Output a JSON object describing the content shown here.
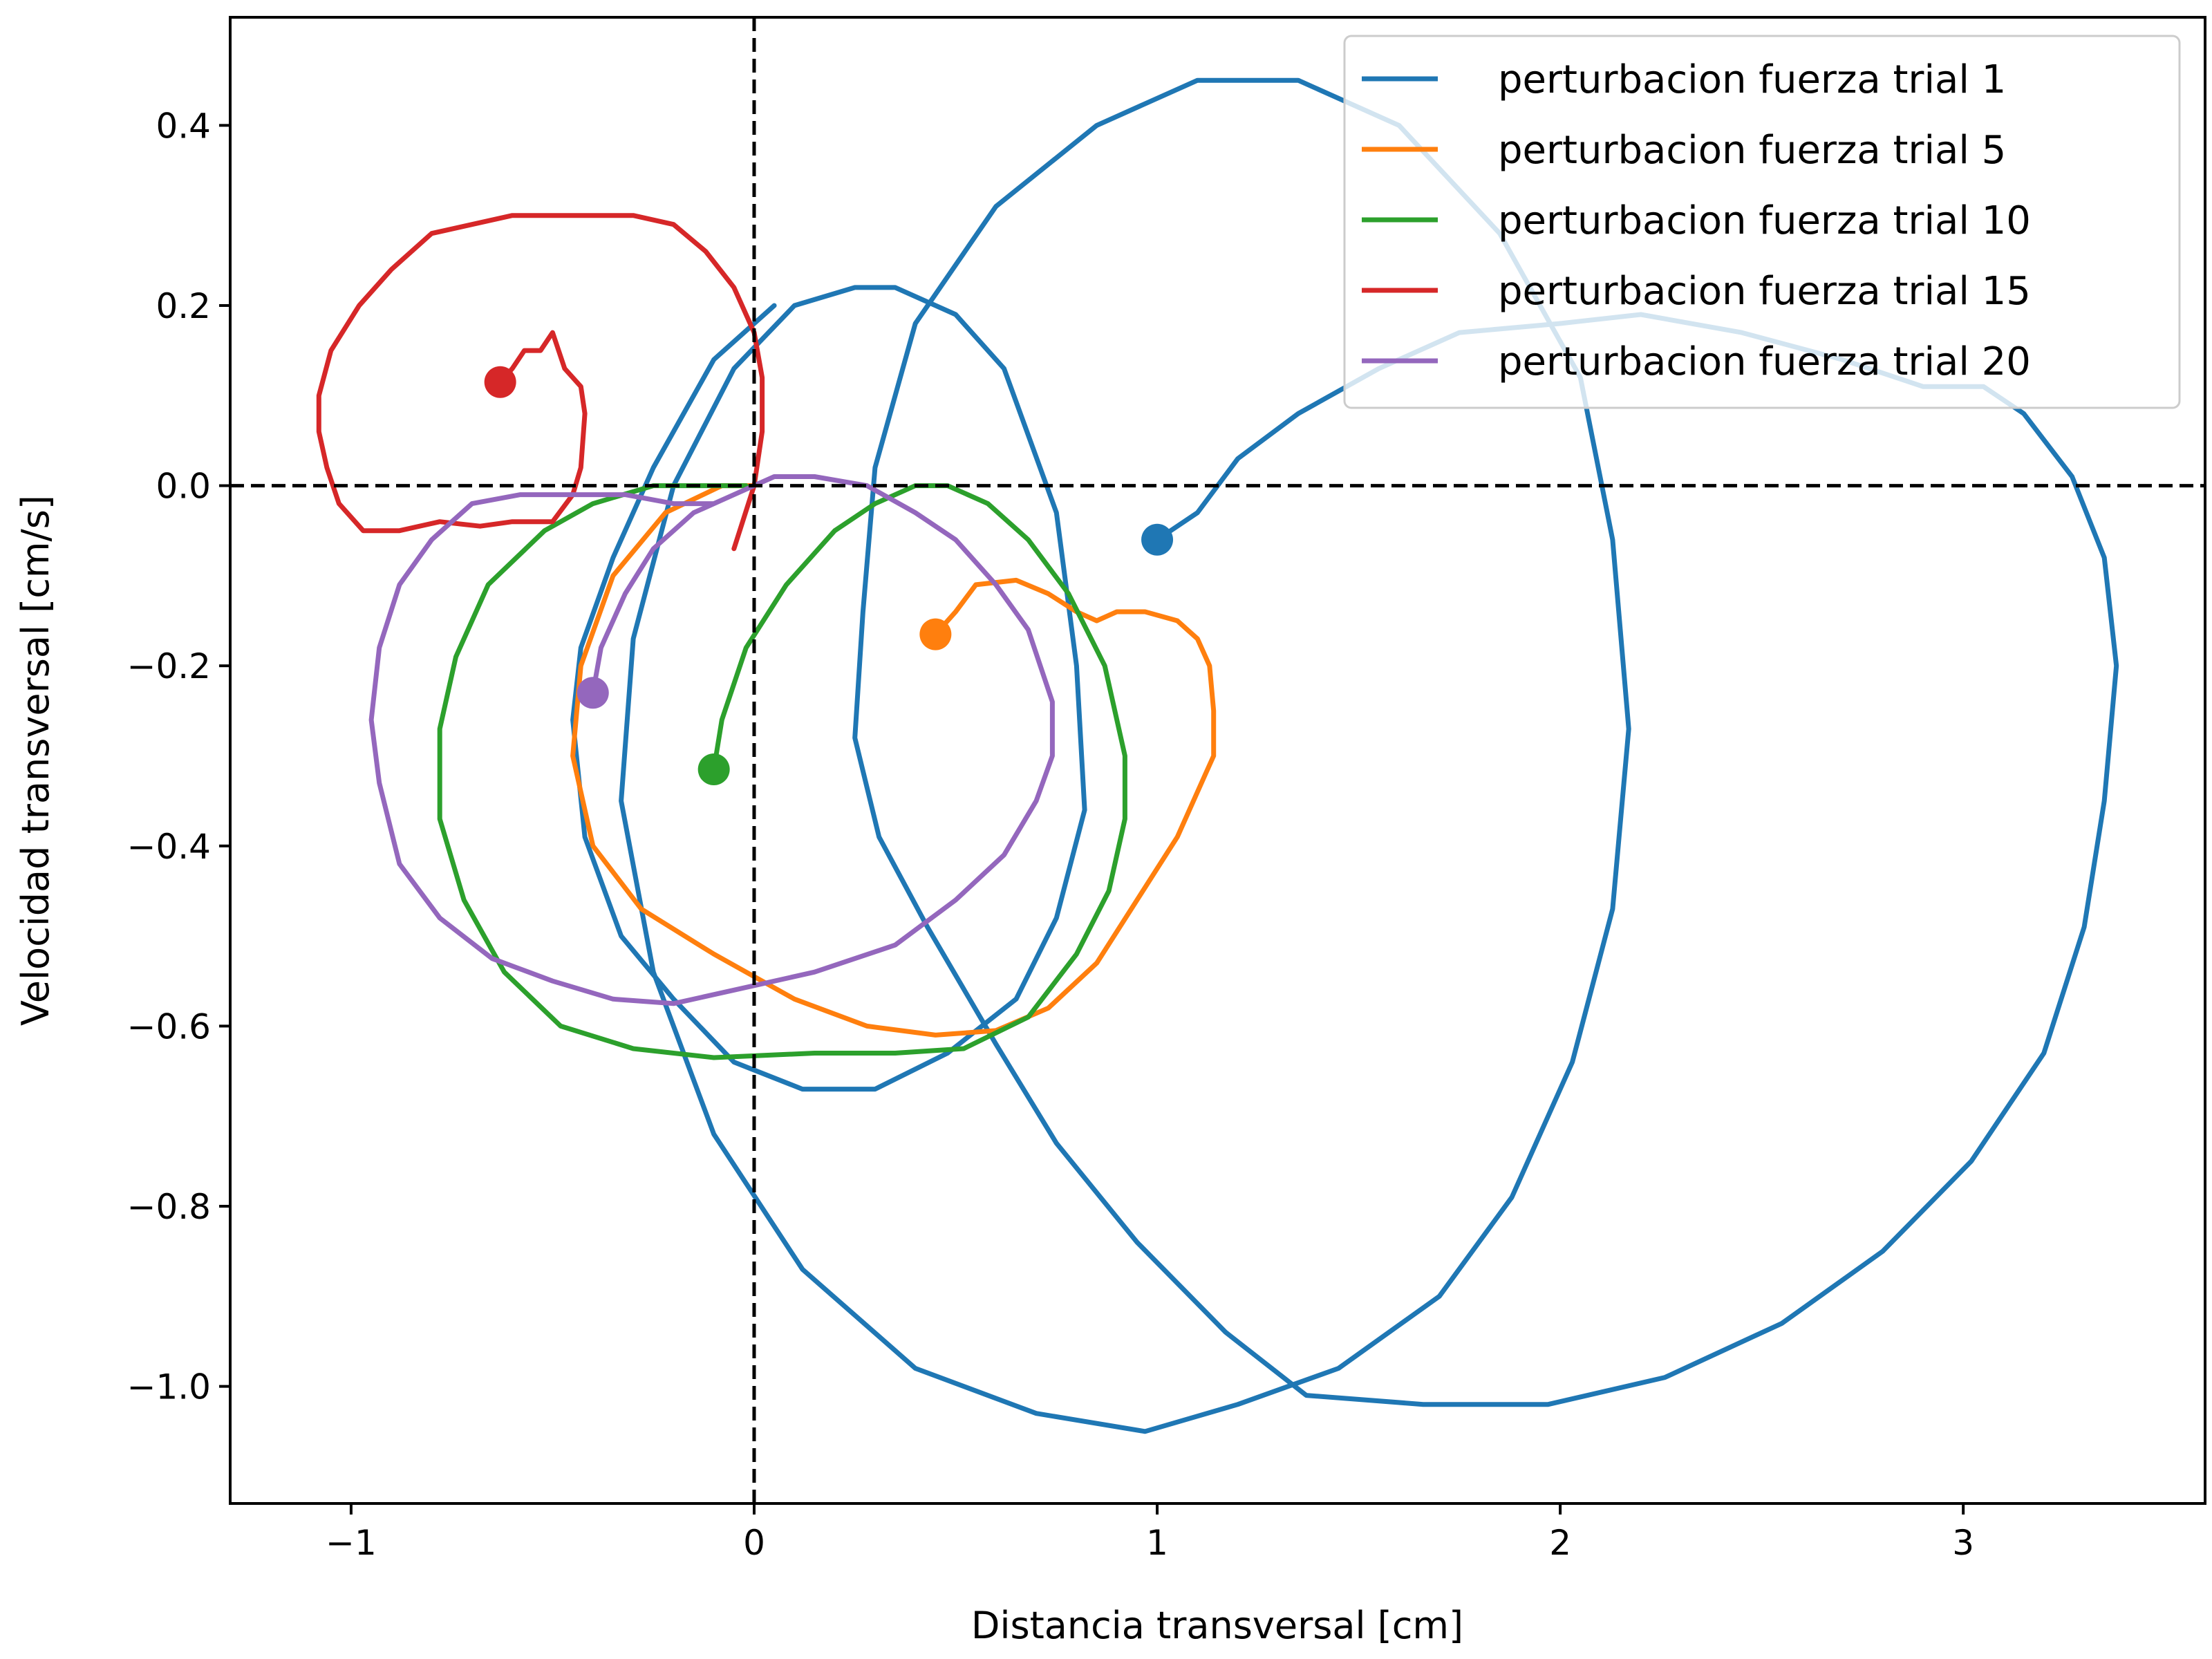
{
  "chart_data": {
    "type": "line",
    "xlabel": "Distancia transversal [cm]",
    "ylabel": "Velocidad transversal [cm/s]",
    "xlim": [
      -1.3,
      3.6
    ],
    "ylim": [
      -1.13,
      0.52
    ],
    "xticks": [
      {
        "value": -1,
        "label": "−1"
      },
      {
        "value": 0,
        "label": "0"
      },
      {
        "value": 1,
        "label": "1"
      },
      {
        "value": 2,
        "label": "2"
      },
      {
        "value": 3,
        "label": "3"
      }
    ],
    "yticks": [
      {
        "value": 0.4,
        "label": "0.4"
      },
      {
        "value": 0.2,
        "label": "0.2"
      },
      {
        "value": 0.0,
        "label": "0.0"
      },
      {
        "value": -0.2,
        "label": "−0.2"
      },
      {
        "value": -0.4,
        "label": "−0.4"
      },
      {
        "value": -0.6,
        "label": "−0.6"
      },
      {
        "value": -0.8,
        "label": "−0.8"
      },
      {
        "value": -1.0,
        "label": "−1.0"
      }
    ],
    "reference_lines": {
      "x": 0,
      "y": 0,
      "style": "dashed",
      "color": "#000000"
    },
    "grid": false,
    "legend_position": "top-right",
    "series": [
      {
        "name": "perturbacion fuerza trial 1",
        "color": "#1f77b4",
        "start_marker": [
          1.0,
          -0.06
        ],
        "points": [
          [
            1.0,
            -0.06
          ],
          [
            1.1,
            -0.03
          ],
          [
            1.2,
            0.03
          ],
          [
            1.35,
            0.08
          ],
          [
            1.55,
            0.13
          ],
          [
            1.75,
            0.17
          ],
          [
            2.0,
            0.18
          ],
          [
            2.2,
            0.19
          ],
          [
            2.45,
            0.17
          ],
          [
            2.7,
            0.14
          ],
          [
            2.9,
            0.11
          ],
          [
            3.05,
            0.11
          ],
          [
            3.15,
            0.08
          ],
          [
            3.27,
            0.01
          ],
          [
            3.35,
            -0.08
          ],
          [
            3.38,
            -0.2
          ],
          [
            3.35,
            -0.35
          ],
          [
            3.3,
            -0.49
          ],
          [
            3.2,
            -0.63
          ],
          [
            3.02,
            -0.75
          ],
          [
            2.8,
            -0.85
          ],
          [
            2.55,
            -0.93
          ],
          [
            2.26,
            -0.99
          ],
          [
            1.97,
            -1.02
          ],
          [
            1.66,
            -1.02
          ],
          [
            1.37,
            -1.01
          ],
          [
            1.17,
            -0.94
          ],
          [
            0.95,
            -0.84
          ],
          [
            0.75,
            -0.73
          ],
          [
            0.6,
            -0.62
          ],
          [
            0.43,
            -0.49
          ],
          [
            0.31,
            -0.39
          ],
          [
            0.25,
            -0.28
          ],
          [
            0.27,
            -0.14
          ],
          [
            0.3,
            0.02
          ],
          [
            0.4,
            0.18
          ],
          [
            0.6,
            0.31
          ],
          [
            0.85,
            0.4
          ],
          [
            1.1,
            0.45
          ],
          [
            1.35,
            0.45
          ],
          [
            1.6,
            0.4
          ],
          [
            1.85,
            0.28
          ],
          [
            2.05,
            0.12
          ],
          [
            2.13,
            -0.06
          ],
          [
            2.17,
            -0.27
          ],
          [
            2.13,
            -0.47
          ],
          [
            2.03,
            -0.64
          ],
          [
            1.88,
            -0.79
          ],
          [
            1.7,
            -0.9
          ],
          [
            1.45,
            -0.98
          ],
          [
            1.2,
            -1.02
          ],
          [
            0.97,
            -1.05
          ],
          [
            0.7,
            -1.03
          ],
          [
            0.4,
            -0.98
          ],
          [
            0.12,
            -0.87
          ],
          [
            -0.1,
            -0.72
          ],
          [
            -0.25,
            -0.54
          ],
          [
            -0.33,
            -0.35
          ],
          [
            -0.3,
            -0.17
          ],
          [
            -0.2,
            0.0
          ],
          [
            -0.05,
            0.13
          ],
          [
            0.1,
            0.2
          ],
          [
            0.25,
            0.22
          ],
          [
            0.35,
            0.22
          ],
          [
            0.5,
            0.19
          ],
          [
            0.62,
            0.13
          ],
          [
            0.75,
            -0.03
          ],
          [
            0.8,
            -0.2
          ],
          [
            0.82,
            -0.36
          ],
          [
            0.75,
            -0.48
          ],
          [
            0.65,
            -0.57
          ],
          [
            0.48,
            -0.63
          ],
          [
            0.3,
            -0.67
          ],
          [
            0.12,
            -0.67
          ],
          [
            -0.05,
            -0.64
          ],
          [
            -0.2,
            -0.57
          ],
          [
            -0.33,
            -0.5
          ],
          [
            -0.42,
            -0.39
          ],
          [
            -0.45,
            -0.26
          ],
          [
            -0.43,
            -0.18
          ],
          [
            -0.35,
            -0.08
          ],
          [
            -0.25,
            0.02
          ],
          [
            -0.1,
            0.14
          ],
          [
            0.05,
            0.2
          ]
        ]
      },
      {
        "name": "perturbacion fuerza trial 5",
        "color": "#ff7f0e",
        "start_marker": [
          0.45,
          -0.165
        ],
        "points": [
          [
            0.45,
            -0.165
          ],
          [
            0.5,
            -0.14
          ],
          [
            0.55,
            -0.11
          ],
          [
            0.65,
            -0.105
          ],
          [
            0.73,
            -0.12
          ],
          [
            0.8,
            -0.14
          ],
          [
            0.85,
            -0.15
          ],
          [
            0.9,
            -0.14
          ],
          [
            0.97,
            -0.14
          ],
          [
            1.05,
            -0.15
          ],
          [
            1.1,
            -0.17
          ],
          [
            1.13,
            -0.2
          ],
          [
            1.14,
            -0.25
          ],
          [
            1.14,
            -0.3
          ],
          [
            1.12,
            -0.32
          ],
          [
            1.05,
            -0.39
          ],
          [
            0.95,
            -0.46
          ],
          [
            0.85,
            -0.53
          ],
          [
            0.73,
            -0.58
          ],
          [
            0.6,
            -0.605
          ],
          [
            0.45,
            -0.61
          ],
          [
            0.28,
            -0.6
          ],
          [
            0.1,
            -0.57
          ],
          [
            -0.1,
            -0.52
          ],
          [
            -0.28,
            -0.47
          ],
          [
            -0.4,
            -0.4
          ],
          [
            -0.45,
            -0.3
          ],
          [
            -0.43,
            -0.2
          ],
          [
            -0.35,
            -0.1
          ],
          [
            -0.22,
            -0.03
          ],
          [
            -0.08,
            0.0
          ],
          [
            0.0,
            0.0
          ]
        ]
      },
      {
        "name": "perturbacion fuerza trial 10",
        "color": "#2ca02c",
        "start_marker": [
          -0.1,
          -0.315
        ],
        "points": [
          [
            -0.1,
            -0.315
          ],
          [
            -0.08,
            -0.26
          ],
          [
            -0.02,
            -0.18
          ],
          [
            0.08,
            -0.11
          ],
          [
            0.2,
            -0.05
          ],
          [
            0.3,
            -0.02
          ],
          [
            0.4,
            0.0
          ],
          [
            0.48,
            0.0
          ],
          [
            0.58,
            -0.02
          ],
          [
            0.68,
            -0.06
          ],
          [
            0.78,
            -0.12
          ],
          [
            0.87,
            -0.2
          ],
          [
            0.92,
            -0.3
          ],
          [
            0.92,
            -0.37
          ],
          [
            0.88,
            -0.45
          ],
          [
            0.8,
            -0.52
          ],
          [
            0.68,
            -0.59
          ],
          [
            0.52,
            -0.625
          ],
          [
            0.35,
            -0.63
          ],
          [
            0.15,
            -0.63
          ],
          [
            -0.1,
            -0.635
          ],
          [
            -0.3,
            -0.625
          ],
          [
            -0.48,
            -0.6
          ],
          [
            -0.62,
            -0.54
          ],
          [
            -0.72,
            -0.46
          ],
          [
            -0.78,
            -0.37
          ],
          [
            -0.78,
            -0.27
          ],
          [
            -0.74,
            -0.19
          ],
          [
            -0.66,
            -0.11
          ],
          [
            -0.52,
            -0.05
          ],
          [
            -0.4,
            -0.02
          ],
          [
            -0.25,
            0.0
          ],
          [
            -0.12,
            0.0
          ],
          [
            -0.02,
            0.0
          ]
        ]
      },
      {
        "name": "perturbacion fuerza trial 15",
        "color": "#d62728",
        "start_marker": [
          -0.63,
          0.115
        ],
        "points": [
          [
            -0.63,
            0.115
          ],
          [
            -0.6,
            0.13
          ],
          [
            -0.57,
            0.15
          ],
          [
            -0.53,
            0.15
          ],
          [
            -0.5,
            0.17
          ],
          [
            -0.47,
            0.13
          ],
          [
            -0.43,
            0.11
          ],
          [
            -0.42,
            0.08
          ],
          [
            -0.43,
            0.02
          ],
          [
            -0.45,
            -0.01
          ],
          [
            -0.5,
            -0.04
          ],
          [
            -0.6,
            -0.04
          ],
          [
            -0.68,
            -0.045
          ],
          [
            -0.78,
            -0.04
          ],
          [
            -0.88,
            -0.05
          ],
          [
            -0.97,
            -0.05
          ],
          [
            -1.03,
            -0.02
          ],
          [
            -1.06,
            0.02
          ],
          [
            -1.08,
            0.06
          ],
          [
            -1.08,
            0.1
          ],
          [
            -1.05,
            0.15
          ],
          [
            -0.98,
            0.2
          ],
          [
            -0.9,
            0.24
          ],
          [
            -0.8,
            0.28
          ],
          [
            -0.7,
            0.29
          ],
          [
            -0.6,
            0.3
          ],
          [
            -0.5,
            0.3
          ],
          [
            -0.4,
            0.3
          ],
          [
            -0.3,
            0.3
          ],
          [
            -0.2,
            0.29
          ],
          [
            -0.12,
            0.26
          ],
          [
            -0.05,
            0.22
          ],
          [
            0.0,
            0.17
          ],
          [
            0.02,
            0.12
          ],
          [
            0.02,
            0.06
          ],
          [
            0.0,
            0.0
          ],
          [
            -0.05,
            -0.07
          ]
        ]
      },
      {
        "name": "perturbacion fuerza trial 20",
        "color": "#9467bd",
        "start_marker": [
          -0.4,
          -0.23
        ],
        "points": [
          [
            -0.4,
            -0.23
          ],
          [
            -0.38,
            -0.18
          ],
          [
            -0.32,
            -0.12
          ],
          [
            -0.25,
            -0.07
          ],
          [
            -0.15,
            -0.03
          ],
          [
            -0.05,
            -0.01
          ],
          [
            0.05,
            0.01
          ],
          [
            0.15,
            0.01
          ],
          [
            0.28,
            0.0
          ],
          [
            0.4,
            -0.03
          ],
          [
            0.5,
            -0.06
          ],
          [
            0.6,
            -0.11
          ],
          [
            0.68,
            -0.16
          ],
          [
            0.74,
            -0.24
          ],
          [
            0.74,
            -0.3
          ],
          [
            0.7,
            -0.35
          ],
          [
            0.62,
            -0.41
          ],
          [
            0.5,
            -0.46
          ],
          [
            0.35,
            -0.51
          ],
          [
            0.15,
            -0.54
          ],
          [
            -0.05,
            -0.56
          ],
          [
            -0.2,
            -0.575
          ],
          [
            -0.35,
            -0.57
          ],
          [
            -0.5,
            -0.55
          ],
          [
            -0.65,
            -0.525
          ],
          [
            -0.78,
            -0.48
          ],
          [
            -0.88,
            -0.42
          ],
          [
            -0.93,
            -0.33
          ],
          [
            -0.95,
            -0.26
          ],
          [
            -0.93,
            -0.18
          ],
          [
            -0.88,
            -0.11
          ],
          [
            -0.8,
            -0.06
          ],
          [
            -0.7,
            -0.02
          ],
          [
            -0.58,
            -0.01
          ],
          [
            -0.45,
            -0.01
          ],
          [
            -0.32,
            -0.01
          ],
          [
            -0.2,
            -0.02
          ],
          [
            -0.1,
            -0.02
          ],
          [
            0.0,
            0.0
          ]
        ]
      }
    ]
  }
}
